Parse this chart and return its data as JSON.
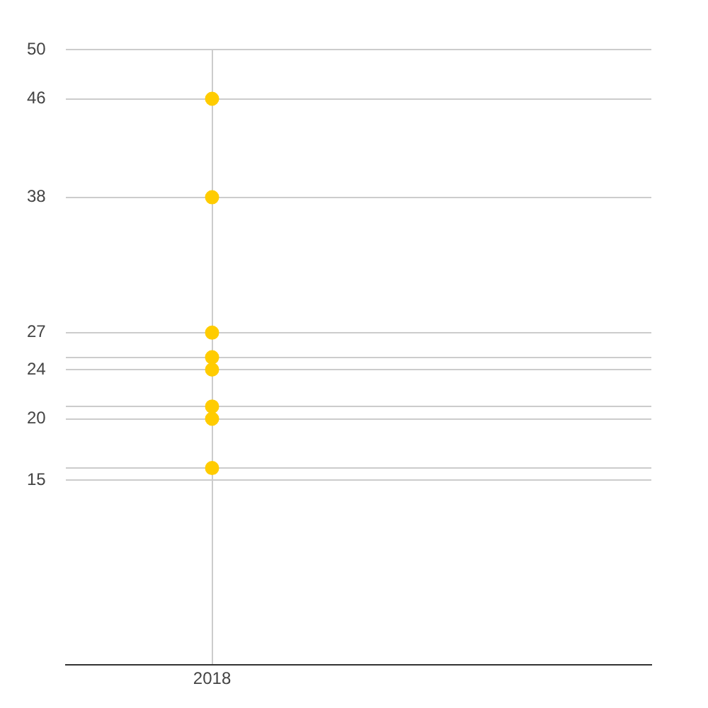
{
  "chart_data": {
    "type": "scatter",
    "categories": [
      "2018",
      null
    ],
    "series": [
      {
        "color": "#ffcc00",
        "values": [
          46,
          null
        ]
      },
      {
        "color": "#ffcc00",
        "values": [
          38,
          null
        ]
      },
      {
        "color": "#ffcc00",
        "values": [
          27,
          null
        ]
      },
      {
        "color": "#ffcc00",
        "values": [
          25,
          null
        ]
      },
      {
        "color": "#ffcc00",
        "values": [
          24,
          null
        ]
      },
      {
        "color": "#ffcc00",
        "values": [
          21,
          null
        ]
      },
      {
        "color": "#ffcc00",
        "values": [
          20,
          null
        ]
      },
      {
        "color": "#ffcc00",
        "values": [
          16,
          null
        ]
      }
    ],
    "ylim": [
      0,
      50
    ],
    "yticks": [
      15,
      {
        "value": 16,
        "label": null
      },
      20,
      {
        "value": 21,
        "label": null
      },
      24,
      {
        "value": 25,
        "label": null
      },
      27,
      38,
      46,
      50
    ],
    "grid": true,
    "legend": false,
    "marker": "circle"
  }
}
